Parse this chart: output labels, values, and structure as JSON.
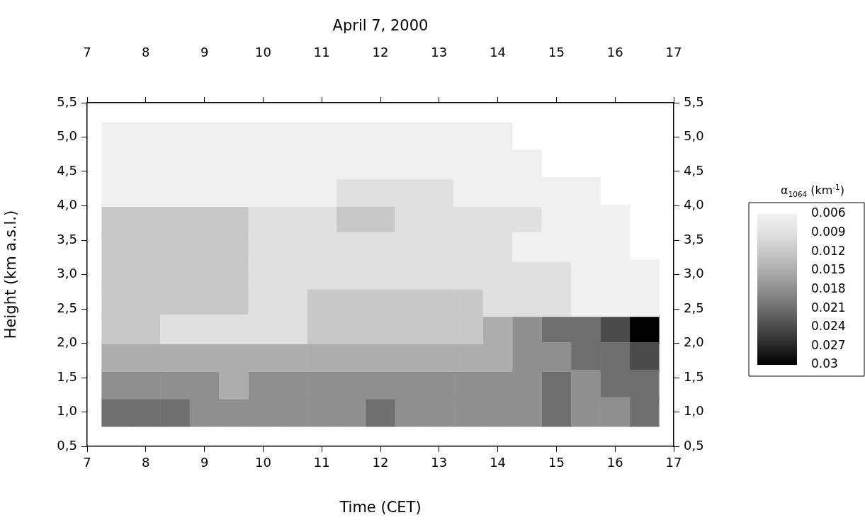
{
  "chart_data": {
    "type": "scatter",
    "title": "April 7, 2000",
    "xlabel": "Time (CET)",
    "ylabel": "Height (km a.s.l.)",
    "clabel": "α$_{1064}$ (km$^{-1}$)",
    "marker": "square",
    "legend": false,
    "grid": false,
    "xlim": [
      7,
      17
    ],
    "xticks": [
      7,
      8,
      9,
      10,
      11,
      12,
      13,
      14,
      15,
      16,
      17
    ],
    "x2lim": [
      7,
      17
    ],
    "x2ticks": [
      7,
      8,
      9,
      10,
      11,
      12,
      13,
      14,
      15,
      16,
      17
    ],
    "ylim": [
      0.5,
      5.5
    ],
    "yticks": [
      {
        "value": 0.5,
        "label": "0,5"
      },
      {
        "value": 1,
        "label": "1,0"
      },
      {
        "value": 1.5,
        "label": "1,5"
      },
      {
        "value": 2,
        "label": "2,0"
      },
      {
        "value": 2.5,
        "label": "2,5"
      },
      {
        "value": 3,
        "label": "3,0"
      },
      {
        "value": 3.5,
        "label": "3,5"
      },
      {
        "value": 4,
        "label": "4,0"
      },
      {
        "value": 4.5,
        "label": "4,5"
      },
      {
        "value": 5,
        "label": "5,0"
      },
      {
        "value": 5.5,
        "label": "5,5"
      }
    ],
    "y2lim": [
      0.5,
      5.5
    ],
    "y2ticks": [
      {
        "value": 0.5,
        "label": "0,5"
      },
      {
        "value": 1,
        "label": "1,0"
      },
      {
        "value": 1.5,
        "label": "1,5"
      },
      {
        "value": 2,
        "label": "2,0"
      },
      {
        "value": 2.5,
        "label": "2,5"
      },
      {
        "value": 3,
        "label": "3,0"
      },
      {
        "value": 3.5,
        "label": "3,5"
      },
      {
        "value": 4,
        "label": "4,0"
      },
      {
        "value": 4.5,
        "label": "4,5"
      },
      {
        "value": 5,
        "label": "5,0"
      },
      {
        "value": 5.5,
        "label": "5,5"
      }
    ],
    "clim": [
      0.006,
      0.03
    ],
    "cticks": [
      0.006,
      0.009,
      0.012,
      0.015,
      0.018,
      0.021,
      0.024,
      0.027,
      0.03
    ],
    "series": [
      {
        "x": [
          7.5,
          8,
          8.5,
          9,
          9.5,
          10,
          10.5,
          11,
          11.5,
          12,
          12.5,
          13,
          13.5,
          14,
          7.5,
          8,
          8.5,
          9,
          9.5,
          10,
          10.5,
          11,
          11.5,
          12,
          12.5,
          13,
          13.5,
          14,
          14.5,
          7.5,
          8,
          8.5,
          9,
          9.5,
          10,
          10.5,
          11,
          13.5,
          14,
          14.5,
          15,
          15.5,
          15,
          15.5,
          16,
          14.5,
          15,
          15.5,
          16,
          15.5,
          16,
          16.5,
          15.5,
          16,
          16.5
        ],
        "values": [
          5,
          5,
          5,
          5,
          5,
          5,
          5,
          5,
          5,
          5,
          5,
          5,
          5,
          5,
          4.6,
          4.6,
          4.6,
          4.6,
          4.6,
          4.6,
          4.6,
          4.6,
          4.6,
          4.6,
          4.6,
          4.6,
          4.6,
          4.6,
          4.6,
          4.2,
          4.2,
          4.2,
          4.2,
          4.2,
          4.2,
          4.2,
          4.2,
          4.2,
          4.2,
          4.2,
          4.2,
          4.2,
          3.8,
          3.8,
          3.8,
          3.4,
          3.4,
          3.4,
          3.4,
          3,
          3,
          3,
          2.6,
          2.6,
          2.6
        ],
        "cvalues": [
          0.006,
          0.006,
          0.006,
          0.006,
          0.006,
          0.006,
          0.006,
          0.006,
          0.006,
          0.006,
          0.006,
          0.006,
          0.006,
          0.006,
          0.006,
          0.006,
          0.006,
          0.006,
          0.006,
          0.006,
          0.006,
          0.006,
          0.006,
          0.006,
          0.006,
          0.006,
          0.006,
          0.006,
          0.006,
          0.006,
          0.006,
          0.006,
          0.006,
          0.006,
          0.006,
          0.006,
          0.006,
          0.006,
          0.006,
          0.006,
          0.006,
          0.006,
          0.006,
          0.006,
          0.006,
          0.006,
          0.006,
          0.006,
          0.006,
          0.006,
          0.006,
          0.006,
          0.006,
          0.006,
          0.006
        ]
      },
      {
        "x": [
          11.5,
          12,
          12.5,
          13,
          10,
          10.5,
          11,
          12.5,
          13,
          13.5,
          14,
          14.5,
          10,
          10.5,
          11,
          11.5,
          12,
          12.5,
          13,
          13.5,
          14,
          10,
          10.5,
          11,
          11.5,
          12,
          12.5,
          13,
          13.5,
          14,
          14.5,
          15,
          10,
          10.5,
          14,
          14.5,
          15,
          8.5,
          9,
          9.5,
          10,
          10.5
        ],
        "values": [
          4.2,
          4.2,
          4.2,
          4.2,
          3.8,
          3.8,
          3.8,
          3.8,
          3.8,
          3.8,
          3.8,
          3.8,
          3.4,
          3.4,
          3.4,
          3.4,
          3.4,
          3.4,
          3.4,
          3.4,
          3.4,
          3,
          3,
          3,
          3,
          3,
          3,
          3,
          3,
          3,
          3,
          3,
          2.6,
          2.6,
          2.6,
          2.6,
          2.6,
          2.2,
          2.2,
          2.2,
          2.2,
          2.2
        ],
        "cvalues": [
          0.009,
          0.009,
          0.009,
          0.009,
          0.009,
          0.009,
          0.009,
          0.009,
          0.009,
          0.009,
          0.009,
          0.009,
          0.009,
          0.009,
          0.009,
          0.009,
          0.009,
          0.009,
          0.009,
          0.009,
          0.009,
          0.009,
          0.009,
          0.009,
          0.009,
          0.009,
          0.009,
          0.009,
          0.009,
          0.009,
          0.009,
          0.009,
          0.009,
          0.009,
          0.009,
          0.009,
          0.009,
          0.009,
          0.009,
          0.009,
          0.009,
          0.009
        ]
      },
      {
        "x": [
          7.5,
          8,
          8.5,
          9,
          9.5,
          11.5,
          12,
          7.5,
          8,
          8.5,
          9,
          9.5,
          7.5,
          8,
          8.5,
          9,
          9.5,
          7.5,
          8,
          8.5,
          9,
          9.5,
          11,
          11.5,
          12,
          12.5,
          13,
          13.5,
          7.5,
          8,
          11,
          11.5,
          12,
          12.5,
          13,
          13.5
        ],
        "values": [
          3.8,
          3.8,
          3.8,
          3.8,
          3.8,
          3.8,
          3.8,
          3.4,
          3.4,
          3.4,
          3.4,
          3.4,
          3,
          3,
          3,
          3,
          3,
          2.6,
          2.6,
          2.6,
          2.6,
          2.6,
          2.6,
          2.6,
          2.6,
          2.6,
          2.6,
          2.6,
          2.2,
          2.2,
          2.2,
          2.2,
          2.2,
          2.2,
          2.2,
          2.2
        ],
        "cvalues": [
          0.012,
          0.012,
          0.012,
          0.012,
          0.012,
          0.012,
          0.012,
          0.012,
          0.012,
          0.012,
          0.012,
          0.012,
          0.012,
          0.012,
          0.012,
          0.012,
          0.012,
          0.012,
          0.012,
          0.012,
          0.012,
          0.012,
          0.012,
          0.012,
          0.012,
          0.012,
          0.012,
          0.012,
          0.012,
          0.012,
          0.012,
          0.012,
          0.012,
          0.012,
          0.012,
          0.012
        ]
      },
      {
        "x": [
          14,
          7.5,
          8,
          8.5,
          9,
          9.5,
          10,
          10.5,
          11,
          11.5,
          12,
          12.5,
          13,
          13.5,
          14,
          9.5
        ],
        "values": [
          2.2,
          1.8,
          1.8,
          1.8,
          1.8,
          1.8,
          1.8,
          1.8,
          1.8,
          1.8,
          1.8,
          1.8,
          1.8,
          1.8,
          1.8,
          1.4
        ],
        "cvalues": [
          0.015,
          0.015,
          0.015,
          0.015,
          0.015,
          0.015,
          0.015,
          0.015,
          0.015,
          0.015,
          0.015,
          0.015,
          0.015,
          0.015,
          0.015,
          0.015
        ]
      },
      {
        "x": [
          14.5,
          14.5,
          15,
          7.5,
          8,
          8.5,
          9,
          10,
          10.5,
          11,
          11.5,
          12,
          12.5,
          13,
          13.5,
          14,
          14.5,
          15.5,
          9,
          9.5,
          10,
          10.5,
          11,
          11.5,
          12.5,
          13,
          13.5,
          14,
          14.5,
          15.5,
          16
        ],
        "values": [
          2.2,
          1.8,
          1.8,
          1.4,
          1.4,
          1.4,
          1.4,
          1.4,
          1.4,
          1.4,
          1.4,
          1.4,
          1.4,
          1.4,
          1.4,
          1.4,
          1.4,
          1.4,
          1,
          1,
          1,
          1,
          1,
          1,
          1,
          1,
          1,
          1,
          1,
          1,
          1
        ],
        "cvalues": [
          0.018,
          0.018,
          0.018,
          0.018,
          0.018,
          0.018,
          0.018,
          0.018,
          0.018,
          0.018,
          0.018,
          0.018,
          0.018,
          0.018,
          0.018,
          0.018,
          0.018,
          0.018,
          0.018,
          0.018,
          0.018,
          0.018,
          0.018,
          0.018,
          0.018,
          0.018,
          0.018,
          0.018,
          0.018,
          0.018,
          0.018
        ]
      },
      {
        "x": [
          15,
          15.5,
          15.5,
          16,
          15,
          16,
          16.5,
          7.5,
          8,
          8.5,
          12,
          15,
          16.5
        ],
        "values": [
          2.2,
          2.2,
          1.8,
          1.8,
          1.4,
          1.4,
          1.4,
          1,
          1,
          1,
          1,
          1,
          1
        ],
        "cvalues": [
          0.021,
          0.021,
          0.021,
          0.021,
          0.021,
          0.021,
          0.021,
          0.021,
          0.021,
          0.021,
          0.021,
          0.021,
          0.021
        ]
      },
      {
        "x": [
          16,
          16.5
        ],
        "values": [
          2.2,
          1.8
        ],
        "cvalues": [
          0.024,
          0.024
        ]
      },
      {
        "x": [
          16.5
        ],
        "values": [
          2.2
        ],
        "cvalues": [
          0.03
        ]
      }
    ]
  }
}
